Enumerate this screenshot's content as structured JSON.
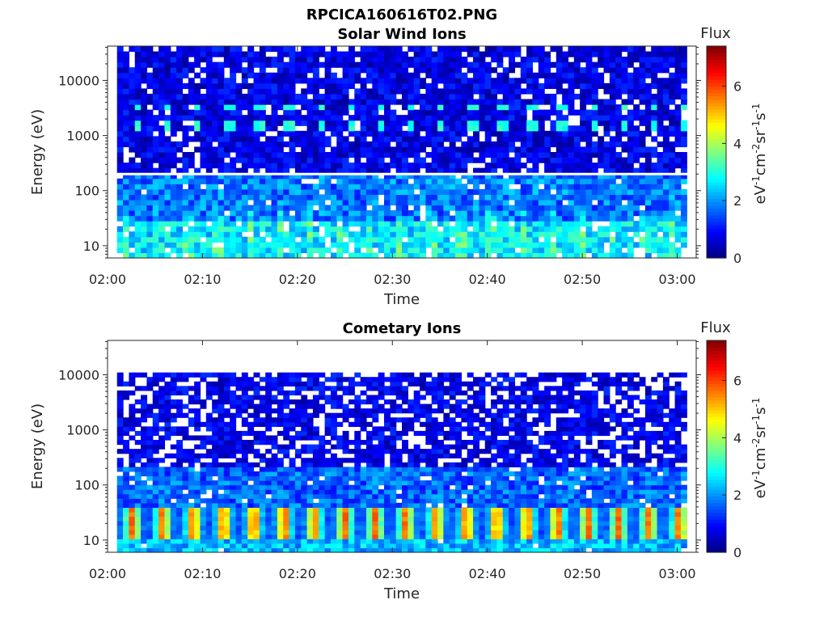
{
  "figure": {
    "title": "RPCICA160616T02.PNG"
  },
  "chart_data": [
    {
      "type": "heatmap",
      "title": "Solar Wind Ions",
      "xlabel": "Time",
      "ylabel": "Energy (eV)",
      "x_ticks": [
        "02:00",
        "02:10",
        "02:20",
        "02:30",
        "02:40",
        "02:50",
        "03:00"
      ],
      "xlim": [
        "02:00",
        "03:02"
      ],
      "y_scale": "log",
      "y_ticks": [
        10,
        100,
        1000,
        10000
      ],
      "ylim": [
        6,
        42000
      ],
      "colorbar": {
        "title": "Flux",
        "label": "eV-1cm-2sr-1s-1",
        "ticks": [
          0,
          2,
          4,
          6
        ],
        "range": [
          0,
          7.4
        ],
        "colormap": "jet"
      },
      "features": {
        "data_time_range": [
          "02:01",
          "03:01"
        ],
        "gap_energy_eV": 200,
        "sweep_period_min": 3.2,
        "peak_energies_eV": [
          1600,
          3300
        ],
        "peak_flux": 3.3,
        "low_energy_flux_range": [
          1.5,
          3.5
        ],
        "background_flux_range": [
          0.2,
          1.5
        ]
      }
    },
    {
      "type": "heatmap",
      "title": "Cometary Ions",
      "xlabel": "Time",
      "ylabel": "Energy (eV)",
      "x_ticks": [
        "02:00",
        "02:10",
        "02:20",
        "02:30",
        "02:40",
        "02:50",
        "03:00"
      ],
      "xlim": [
        "02:00",
        "03:02"
      ],
      "y_scale": "log",
      "y_ticks": [
        10,
        100,
        1000,
        10000
      ],
      "ylim": [
        6,
        42000
      ],
      "colorbar": {
        "title": "Flux",
        "label": "eV-1cm-2sr-1s-1",
        "ticks": [
          0,
          2,
          4,
          6
        ],
        "range": [
          0,
          7.4
        ],
        "colormap": "jet"
      },
      "features": {
        "data_time_range": [
          "02:01",
          "03:01"
        ],
        "max_energy_eV": 11000,
        "sweep_period_min": 3.2,
        "peak_energy_range_eV": [
          10,
          40
        ],
        "peak_flux": 6.0,
        "background_flux_range": [
          0.3,
          1.5
        ]
      }
    }
  ]
}
